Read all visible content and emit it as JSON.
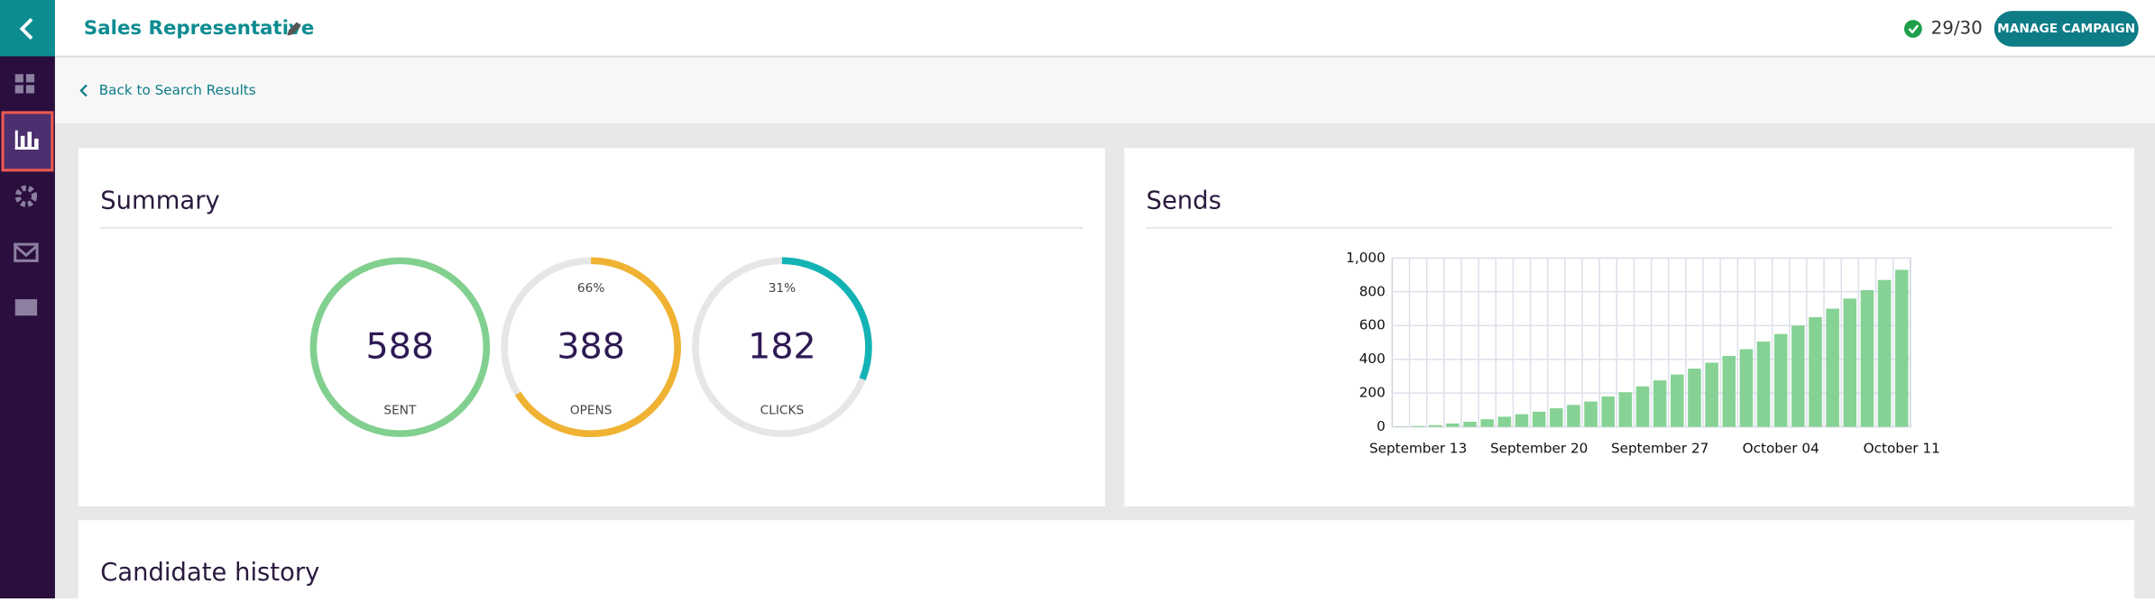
{
  "header": {
    "title": "Sales Representative",
    "progress": "29/30",
    "button": "MANAGE CAMPAIGN"
  },
  "nav": {
    "back": "Back to Search Results"
  },
  "summary": {
    "title": "Summary",
    "gauges": [
      {
        "value": 588,
        "label": "SENT",
        "color": "#82d08f"
      },
      {
        "value": 388,
        "label": "OPENS",
        "percent": 66,
        "percent_label": "66%",
        "color": "#f0b232"
      },
      {
        "value": 182,
        "label": "CLICKS",
        "percent": 31,
        "percent_label": "31%",
        "color": "#13b3b5"
      }
    ]
  },
  "chart_data": {
    "type": "bar",
    "title": "Sends",
    "color": "#86d295",
    "categories": [
      null,
      "September 13",
      null,
      null,
      null,
      null,
      null,
      null,
      "September 20",
      null,
      null,
      null,
      null,
      null,
      null,
      "September 27",
      null,
      null,
      null,
      null,
      null,
      null,
      "October 04",
      null,
      null,
      null,
      null,
      null,
      null,
      "October 11"
    ],
    "values": [
      2,
      5,
      10,
      20,
      30,
      45,
      60,
      75,
      90,
      110,
      130,
      150,
      180,
      205,
      240,
      275,
      310,
      345,
      380,
      420,
      460,
      505,
      550,
      600,
      650,
      700,
      760,
      810,
      870,
      930
    ],
    "ylim": [
      0,
      1000
    ],
    "yticks": [
      0,
      200,
      400,
      600,
      800,
      {
        "value": 1000,
        "label": "1,000"
      }
    ],
    "grid": true
  },
  "candidate_history": {
    "title": "Candidate history"
  }
}
